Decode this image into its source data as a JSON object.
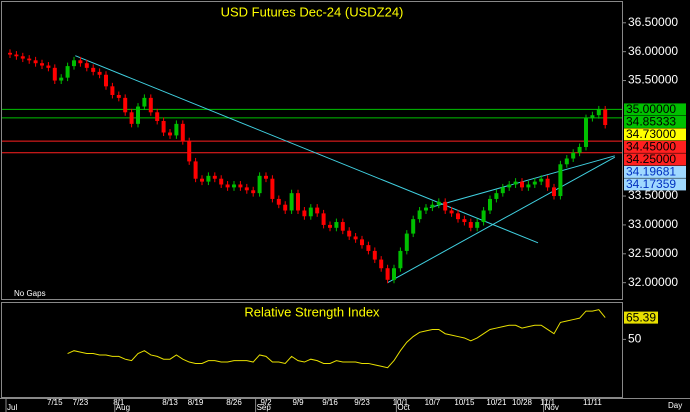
{
  "chart_data": [
    {
      "type": "candlestick",
      "title": "USD Futures Dec-24 (USDZ24)",
      "note": "No Gaps",
      "x_unit": "Day",
      "categories": [
        null,
        null,
        null,
        null,
        null,
        null,
        null,
        "7/15",
        null,
        null,
        null,
        "7/23",
        null,
        null,
        null,
        null,
        null,
        "8/1",
        null,
        null,
        null,
        null,
        null,
        null,
        null,
        "8/13",
        null,
        null,
        null,
        "8/19",
        null,
        null,
        null,
        null,
        null,
        "8/26",
        null,
        null,
        null,
        null,
        "9/2",
        null,
        null,
        null,
        null,
        "9/9",
        null,
        null,
        null,
        null,
        "9/16",
        null,
        null,
        null,
        null,
        "9/23",
        null,
        null,
        null,
        null,
        null,
        "10/1",
        null,
        null,
        null,
        null,
        "10/7",
        null,
        null,
        null,
        null,
        "10/15",
        null,
        null,
        null,
        null,
        "10/21",
        null,
        null,
        null,
        "10/28",
        null,
        null,
        null,
        "11/1",
        null,
        null,
        null,
        null,
        null,
        null,
        "11/11",
        null,
        null
      ],
      "months": [
        "Jul",
        null,
        null,
        null,
        null,
        null,
        null,
        null,
        null,
        null,
        null,
        null,
        null,
        null,
        null,
        null,
        null,
        "Aug",
        null,
        null,
        null,
        null,
        null,
        null,
        null,
        null,
        null,
        null,
        null,
        null,
        null,
        null,
        null,
        null,
        null,
        null,
        null,
        null,
        null,
        "Sep",
        null,
        null,
        null,
        null,
        null,
        null,
        null,
        null,
        null,
        null,
        null,
        null,
        null,
        null,
        null,
        null,
        null,
        null,
        null,
        null,
        null,
        "Oct",
        null,
        null,
        null,
        null,
        null,
        null,
        null,
        null,
        null,
        null,
        null,
        null,
        null,
        null,
        null,
        null,
        null,
        null,
        null,
        null,
        null,
        null,
        "Nov",
        null,
        null,
        null,
        null,
        null,
        null,
        null,
        null,
        null
      ],
      "open": [
        35.98,
        35.95,
        35.92,
        35.88,
        35.85,
        35.8,
        35.76,
        35.72,
        35.5,
        35.55,
        35.75,
        35.85,
        35.8,
        35.72,
        35.65,
        35.6,
        35.4,
        35.25,
        35.2,
        34.95,
        34.75,
        35.05,
        35.2,
        34.95,
        34.8,
        34.6,
        34.55,
        34.75,
        34.45,
        34.1,
        33.8,
        33.75,
        33.85,
        33.8,
        33.7,
        33.65,
        33.7,
        33.65,
        33.6,
        33.55,
        33.85,
        33.8,
        33.45,
        33.35,
        33.25,
        33.55,
        33.25,
        33.15,
        33.3,
        33.2,
        33.0,
        32.95,
        33.05,
        32.9,
        32.8,
        32.75,
        32.65,
        32.55,
        32.4,
        32.25,
        32.05,
        32.25,
        32.55,
        32.85,
        33.1,
        33.25,
        33.3,
        33.35,
        33.4,
        33.25,
        33.2,
        33.1,
        33.05,
        32.95,
        33.05,
        33.25,
        33.45,
        33.55,
        33.65,
        33.7,
        33.75,
        33.65,
        33.7,
        33.75,
        33.8,
        33.65,
        33.5,
        34.05,
        34.15,
        34.25,
        34.35,
        34.85,
        34.9,
        35.0
      ],
      "high": [
        36.04,
        36.01,
        35.98,
        35.94,
        35.91,
        35.86,
        35.82,
        35.78,
        35.61,
        35.81,
        35.91,
        35.91,
        35.86,
        35.78,
        35.71,
        35.66,
        35.46,
        35.31,
        35.26,
        35.01,
        35.11,
        35.26,
        35.26,
        35.01,
        34.86,
        34.66,
        34.81,
        34.81,
        34.51,
        34.16,
        33.86,
        33.91,
        33.91,
        33.86,
        33.76,
        33.76,
        33.76,
        33.71,
        33.66,
        33.91,
        33.91,
        33.86,
        33.51,
        33.41,
        33.61,
        33.61,
        33.31,
        33.36,
        33.36,
        33.26,
        33.06,
        33.11,
        33.11,
        32.96,
        32.86,
        32.81,
        32.71,
        32.61,
        32.46,
        32.31,
        32.31,
        32.61,
        32.91,
        33.16,
        33.31,
        33.36,
        33.41,
        33.46,
        33.46,
        33.31,
        33.26,
        33.16,
        33.11,
        33.11,
        33.31,
        33.51,
        33.61,
        33.71,
        33.76,
        33.81,
        33.81,
        33.76,
        33.81,
        33.86,
        33.86,
        33.71,
        34.11,
        34.21,
        34.31,
        34.41,
        34.91,
        34.96,
        35.06,
        35.06
      ],
      "low": [
        35.89,
        35.86,
        35.82,
        35.79,
        35.74,
        35.7,
        35.66,
        35.44,
        35.44,
        35.49,
        35.69,
        35.74,
        35.66,
        35.59,
        35.54,
        35.34,
        35.19,
        35.14,
        34.89,
        34.69,
        34.69,
        34.99,
        34.89,
        34.74,
        34.54,
        34.49,
        34.49,
        34.39,
        34.04,
        33.74,
        33.69,
        33.69,
        33.74,
        33.64,
        33.59,
        33.59,
        33.59,
        33.54,
        33.49,
        33.49,
        33.74,
        33.39,
        33.29,
        33.19,
        33.19,
        33.19,
        33.09,
        33.09,
        33.14,
        32.94,
        32.89,
        32.89,
        32.84,
        32.74,
        32.69,
        32.59,
        32.49,
        32.34,
        32.19,
        31.99,
        31.99,
        32.19,
        32.49,
        32.79,
        33.04,
        33.19,
        33.24,
        33.29,
        33.19,
        33.14,
        33.04,
        32.99,
        32.89,
        32.89,
        32.99,
        33.19,
        33.39,
        33.49,
        33.59,
        33.64,
        33.59,
        33.59,
        33.64,
        33.69,
        33.59,
        33.44,
        33.44,
        33.99,
        34.09,
        34.19,
        34.29,
        34.79,
        34.84,
        34.67
      ],
      "close": [
        35.95,
        35.92,
        35.88,
        35.85,
        35.8,
        35.76,
        35.72,
        35.5,
        35.55,
        35.75,
        35.85,
        35.8,
        35.72,
        35.65,
        35.6,
        35.4,
        35.25,
        35.2,
        34.95,
        34.75,
        35.05,
        35.2,
        34.95,
        34.8,
        34.6,
        34.55,
        34.75,
        34.45,
        34.1,
        33.8,
        33.75,
        33.85,
        33.8,
        33.7,
        33.65,
        33.7,
        33.65,
        33.6,
        33.55,
        33.85,
        33.8,
        33.45,
        33.35,
        33.25,
        33.55,
        33.25,
        33.15,
        33.3,
        33.2,
        33.0,
        32.95,
        33.05,
        32.9,
        32.8,
        32.75,
        32.65,
        32.55,
        32.4,
        32.25,
        32.05,
        32.25,
        32.55,
        32.85,
        33.1,
        33.25,
        33.3,
        33.35,
        33.4,
        33.25,
        33.2,
        33.1,
        33.05,
        32.95,
        33.05,
        33.25,
        33.45,
        33.55,
        33.65,
        33.7,
        33.75,
        33.65,
        33.7,
        33.75,
        33.8,
        33.65,
        33.5,
        34.05,
        34.15,
        34.25,
        34.35,
        34.85,
        34.9,
        35.0,
        34.73
      ],
      "up_color": "#00c000",
      "down_color": "#ff0000",
      "ylim": [
        31.7,
        36.86
      ],
      "yticks": [
        {
          "value": 32,
          "label": "32.00000"
        },
        {
          "value": 32.5,
          "label": "32.50000"
        },
        {
          "value": 33,
          "label": "33.00000"
        },
        {
          "value": 33.5,
          "label": "33.50000"
        },
        {
          "value": 35.5,
          "label": "35.50000"
        },
        {
          "value": 36,
          "label": "36.00000"
        },
        {
          "value": 36.5,
          "label": "36.50000"
        }
      ],
      "levels": [
        {
          "value": 35.0,
          "label": "35.00000",
          "color": "#00c000"
        },
        {
          "value": 34.85333,
          "label": "34.85333",
          "color": "#00c000"
        },
        {
          "value": 34.45,
          "label": "34.45000",
          "color": "#ff2020"
        },
        {
          "value": 34.25,
          "label": "34.25000",
          "color": "#ff2020"
        }
      ],
      "last_price": {
        "value": 34.73,
        "label": "34.73000",
        "color": "#ffff00"
      },
      "trendlines": [
        {
          "x": [
            10.2,
            82.5
          ],
          "y": [
            35.93,
            32.69
          ],
          "color": "#40d0e0"
        },
        {
          "x": [
            59,
            94.5
          ],
          "y": [
            32.0,
            34.17359
          ],
          "label": "34.17359",
          "color": "#40d0e0"
        },
        {
          "x": [
            65.6,
            94.5
          ],
          "y": [
            33.3,
            34.19681
          ],
          "label": "34.19681",
          "color": "#40d0e0"
        }
      ]
    },
    {
      "type": "line",
      "title": "Relative Strength Index",
      "color": "#e8e000",
      "ylim": [
        10,
        75
      ],
      "yticks": [
        50
      ],
      "values": [
        null,
        null,
        null,
        null,
        null,
        null,
        null,
        null,
        null,
        40,
        42,
        41,
        40,
        40,
        39,
        39,
        38,
        38,
        36,
        35,
        40,
        42,
        39,
        38,
        36,
        36,
        39,
        36,
        34,
        33,
        33,
        35,
        35,
        34,
        34,
        35,
        35,
        35,
        34,
        39,
        38,
        34,
        34,
        33,
        38,
        35,
        34,
        36,
        35,
        33,
        33,
        35,
        34,
        34,
        34,
        33,
        33,
        32,
        31,
        30,
        35,
        42,
        48,
        52,
        55,
        56,
        57,
        57,
        54,
        53,
        52,
        51,
        49,
        51,
        54,
        57,
        58,
        59,
        60,
        60,
        58,
        59,
        60,
        60,
        57,
        54,
        62,
        63,
        64,
        65,
        70,
        70,
        71,
        65.39
      ]
    }
  ]
}
